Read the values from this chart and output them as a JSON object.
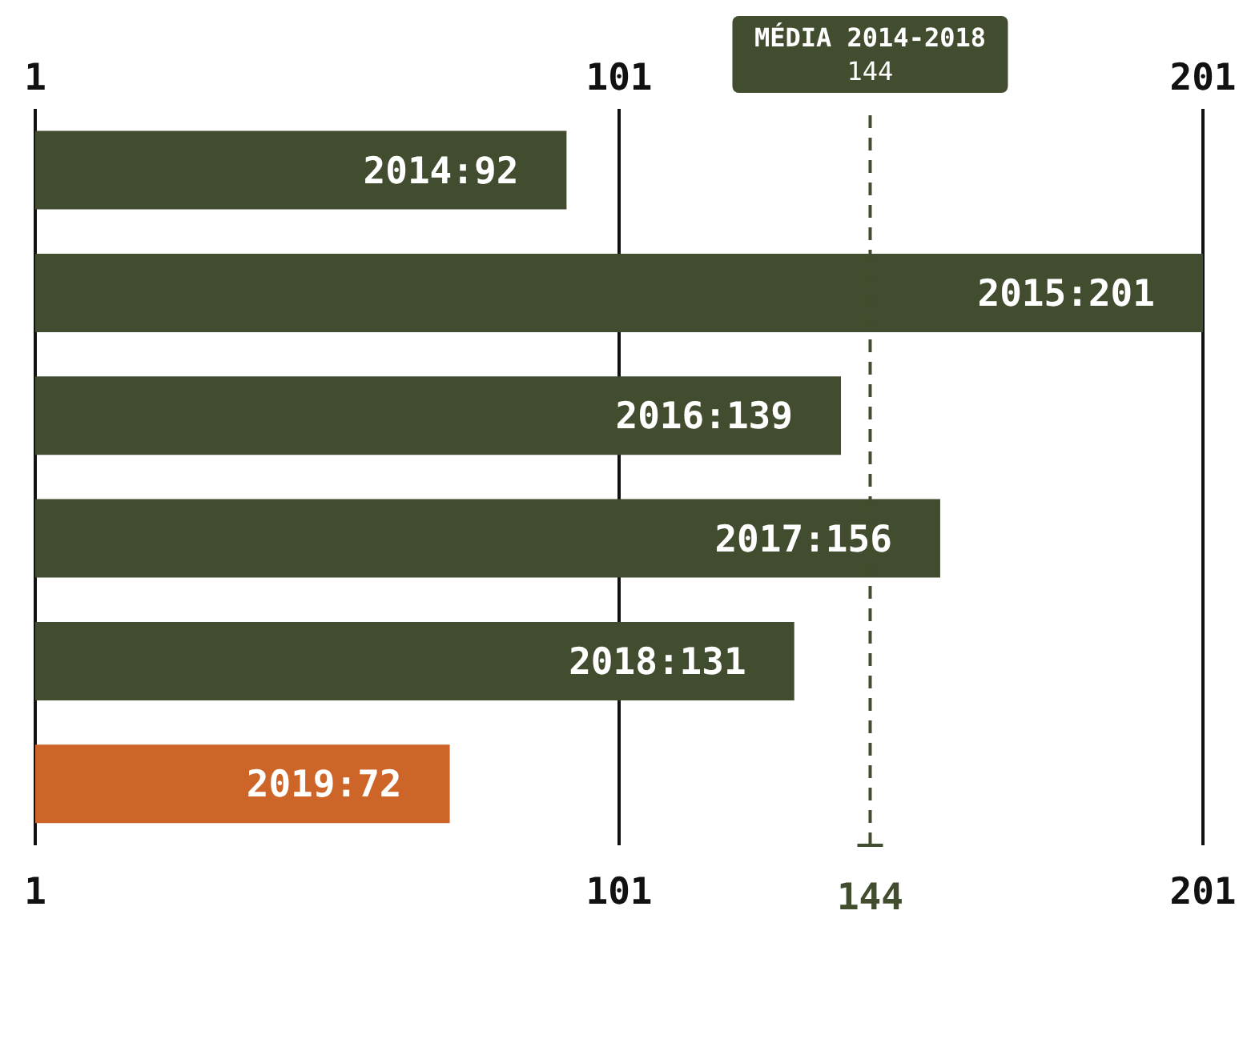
{
  "chart_data": {
    "type": "bar",
    "orientation": "horizontal",
    "categories": [
      null,
      null,
      null,
      null,
      null,
      null
    ],
    "values": [
      92,
      201,
      139,
      156,
      131,
      72
    ],
    "value_labels": [
      "2014:92",
      "2015:201",
      "2016:139",
      "2017:156",
      "2018:131",
      "2019:72"
    ],
    "colors": [
      "#414d2e",
      "#414d2e",
      "#414d2e",
      "#414d2e",
      "#414d2e",
      "#cc6527"
    ],
    "xlim": [
      1,
      201
    ],
    "xticks": [
      1,
      101,
      201
    ],
    "x2lim": [
      1,
      201
    ],
    "x2ticks": [
      1,
      101,
      201
    ],
    "grid": "x",
    "ref_lines": [
      {
        "axis": "x",
        "value": 144,
        "label": "MÉDIA 2014-2018\n144",
        "color": "#414d2e",
        "line_style": "dashed"
      }
    ],
    "annotations": [
      "144"
    ]
  }
}
